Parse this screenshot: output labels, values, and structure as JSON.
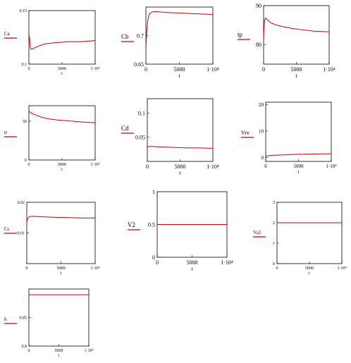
{
  "colors": {
    "series": "#cc0000",
    "axis": "#000000",
    "underline": "#cc0000"
  },
  "chart_data": [
    {
      "type": "line",
      "ylabel": "Ca",
      "xlabel": "t",
      "xlim": [
        0,
        10000
      ],
      "ylim": [
        0.1,
        0.15
      ],
      "xticks": [
        "0",
        "5000",
        "1·10⁴"
      ],
      "yticks": [
        "0.1",
        "0.15"
      ],
      "series": [
        {
          "x": [
            0,
            100,
            200,
            300,
            500,
            800,
            1500,
            2500,
            4000,
            6000,
            8000,
            10000
          ],
          "values": [
            0.128,
            0.124,
            0.116,
            0.114,
            0.114,
            0.115,
            0.117,
            0.119,
            0.12,
            0.121,
            0.121,
            0.122
          ]
        }
      ]
    },
    {
      "type": "line",
      "ylabel": "Cb",
      "xlabel": "t",
      "xlim": [
        0,
        10000
      ],
      "ylim": [
        0.65,
        0.75
      ],
      "xticks": [
        "0",
        "5000",
        "1·10⁴"
      ],
      "yticks": [
        "0.65",
        "0.7"
      ],
      "series": [
        {
          "x": [
            0,
            50,
            150,
            300,
            500,
            800,
            1200,
            1600,
            2500,
            4000,
            6000,
            8000,
            10000
          ],
          "values": [
            0.676,
            0.69,
            0.712,
            0.728,
            0.737,
            0.741,
            0.742,
            0.742,
            0.741,
            0.74,
            0.739,
            0.738,
            0.737
          ]
        }
      ]
    },
    {
      "type": "line",
      "ylabel": "tp",
      "xlabel": "t",
      "xlim": [
        0,
        10000
      ],
      "ylim": [
        75,
        90
      ],
      "xticks": [
        "0",
        "5000",
        "1·10⁴"
      ],
      "yticks": [
        "80",
        "90"
      ],
      "series": [
        {
          "x": [
            0,
            50,
            150,
            300,
            500,
            800,
            1200,
            2000,
            3000,
            4500,
            6000,
            8000,
            10000
          ],
          "values": [
            81.5,
            84,
            86.3,
            86.8,
            86.5,
            86.0,
            85.5,
            85.0,
            84.6,
            84.1,
            83.8,
            83.4,
            83.3
          ]
        }
      ]
    },
    {
      "type": "line",
      "ylabel": "tr",
      "xlabel": "t",
      "xlim": [
        0,
        10000
      ],
      "ylim": [
        0,
        70
      ],
      "xticks": [
        "0",
        "5000",
        "1·10⁴"
      ],
      "yticks": [
        "0",
        "50"
      ],
      "series": [
        {
          "x": [
            0,
            200,
            500,
            1000,
            2000,
            3000,
            4500,
            6000,
            8000,
            10000
          ],
          "values": [
            63,
            61.5,
            60,
            58,
            55,
            53,
            51.5,
            50.5,
            49,
            48
          ]
        }
      ]
    },
    {
      "type": "line",
      "ylabel": "Cd",
      "xlabel": "t",
      "xlim": [
        0,
        10000
      ],
      "ylim": [
        0,
        0.13
      ],
      "xticks": [
        "0",
        "5000",
        "1·10⁴"
      ],
      "yticks": [
        "0.05",
        "0.1"
      ],
      "series": [
        {
          "x": [
            0,
            100,
            300,
            800,
            2000,
            4000,
            6000,
            8000,
            10000
          ],
          "values": [
            0.028,
            0.03,
            0.031,
            0.031,
            0.03,
            0.029,
            0.028,
            0.028,
            0.027
          ]
        }
      ]
    },
    {
      "type": "line",
      "ylabel": "Vrv",
      "xlabel": "t",
      "xlim": [
        0,
        10000
      ],
      "ylim": [
        -1.5,
        21
      ],
      "xticks": [
        "0",
        "5000",
        "1·10⁴"
      ],
      "yticks": [
        "0",
        "10",
        "20"
      ],
      "series": [
        {
          "x": [
            0,
            1000,
            3000,
            5000,
            7000,
            10000
          ],
          "values": [
            0.5,
            0.8,
            1.0,
            1.2,
            1.3,
            1.4
          ]
        }
      ]
    },
    {
      "type": "line",
      "ylabel": "Cc",
      "xlabel": "t",
      "xlim": [
        0,
        10000
      ],
      "ylim": [
        0,
        0.02
      ],
      "xticks": [
        "0",
        "5000",
        "1·10⁴"
      ],
      "yticks": [
        "0.01",
        "0.02"
      ],
      "series": [
        {
          "x": [
            0,
            100,
            300,
            600,
            1000,
            2000,
            4000,
            6000,
            8000,
            10000
          ],
          "values": [
            0.0135,
            0.0145,
            0.0152,
            0.0154,
            0.0154,
            0.0153,
            0.0151,
            0.015,
            0.0149,
            0.0149
          ]
        }
      ]
    },
    {
      "type": "line",
      "ylabel": "V2",
      "xlabel": "t",
      "xlim": [
        0,
        10000
      ],
      "ylim": [
        0,
        1
      ],
      "xticks": [
        "0",
        "5000",
        "1·10⁴"
      ],
      "yticks": [
        "0",
        "0.5",
        "1"
      ],
      "series": [
        {
          "x": [
            0,
            10000
          ],
          "values": [
            0.5,
            0.5
          ]
        }
      ]
    },
    {
      "type": "line",
      "ylabel": "Vs2",
      "xlabel": "t",
      "xlim": [
        0,
        10000
      ],
      "ylim": [
        0,
        3
      ],
      "xticks": [
        "0",
        "5000",
        "1·10⁴"
      ],
      "yticks": [
        "0",
        "1",
        "2",
        "3"
      ],
      "series": [
        {
          "x": [
            0,
            10000
          ],
          "values": [
            2,
            2
          ]
        }
      ]
    },
    {
      "type": "line",
      "ylabel": "h",
      "xlabel": "t",
      "xlim": [
        0,
        10000
      ],
      "ylim": [
        0.8,
        0.9
      ],
      "xticks": [
        "0",
        "5000",
        "1·10⁴"
      ],
      "yticks": [
        "0.8",
        "0.85"
      ],
      "series": [
        {
          "x": [
            0,
            10000
          ],
          "values": [
            0.89,
            0.89
          ]
        }
      ]
    }
  ]
}
